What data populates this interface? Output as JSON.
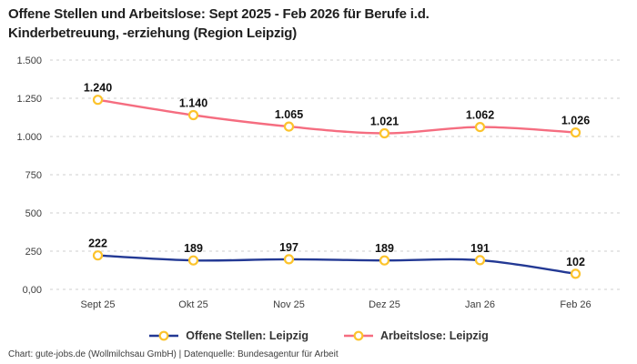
{
  "title": "Offene Stellen und Arbeitslose: Sept 2025 - Feb 2026 für Berufe i.d. Kinderbetreuung, -erziehung (Region Leipzig)",
  "footer": "Chart: gute-jobs.de (Wollmilchsau GmbH) | Datenquelle: Bundesagentur für Arbeit",
  "colors": {
    "offene": "#233994",
    "arbeitslose": "#f56d80",
    "marker": "#fcc32c",
    "grid": "#cfcfcf",
    "title_text": "#1e1e1e",
    "axis_text": "#3d3d3d",
    "label_text": "#101010"
  },
  "chart_data": {
    "type": "line",
    "title": "Offene Stellen und Arbeitslose: Sept 2025 - Feb 2026 für Berufe i.d. Kinderbetreuung, -erziehung (Region Leipzig)",
    "categories": [
      "Sept 25",
      "Okt 25",
      "Nov 25",
      "Dez 25",
      "Jan 26",
      "Feb 26"
    ],
    "series": [
      {
        "name": "Offene Stellen: Leipzig",
        "values": [
          222,
          189,
          197,
          189,
          191,
          102
        ],
        "labels": [
          "222",
          "189",
          "197",
          "189",
          "191",
          "102"
        ],
        "color_key": "offene"
      },
      {
        "name": "Arbeitslose: Leipzig",
        "values": [
          1240,
          1140,
          1065,
          1021,
          1062,
          1026
        ],
        "labels": [
          "1.240",
          "1.140",
          "1.065",
          "1.021",
          "1.062",
          "1.026"
        ],
        "color_key": "arbeitslose"
      }
    ],
    "xlabel": "",
    "ylabel": "",
    "ylim": [
      0,
      1500
    ],
    "yticks": {
      "values": [
        0,
        250,
        500,
        750,
        1000,
        1250,
        1500
      ],
      "labels": [
        "0,00",
        "250",
        "500",
        "750",
        "1.000",
        "1.250",
        "1.500"
      ]
    },
    "grid": "horizontal-dashed",
    "legend_position": "bottom",
    "marker_style": "ring"
  }
}
